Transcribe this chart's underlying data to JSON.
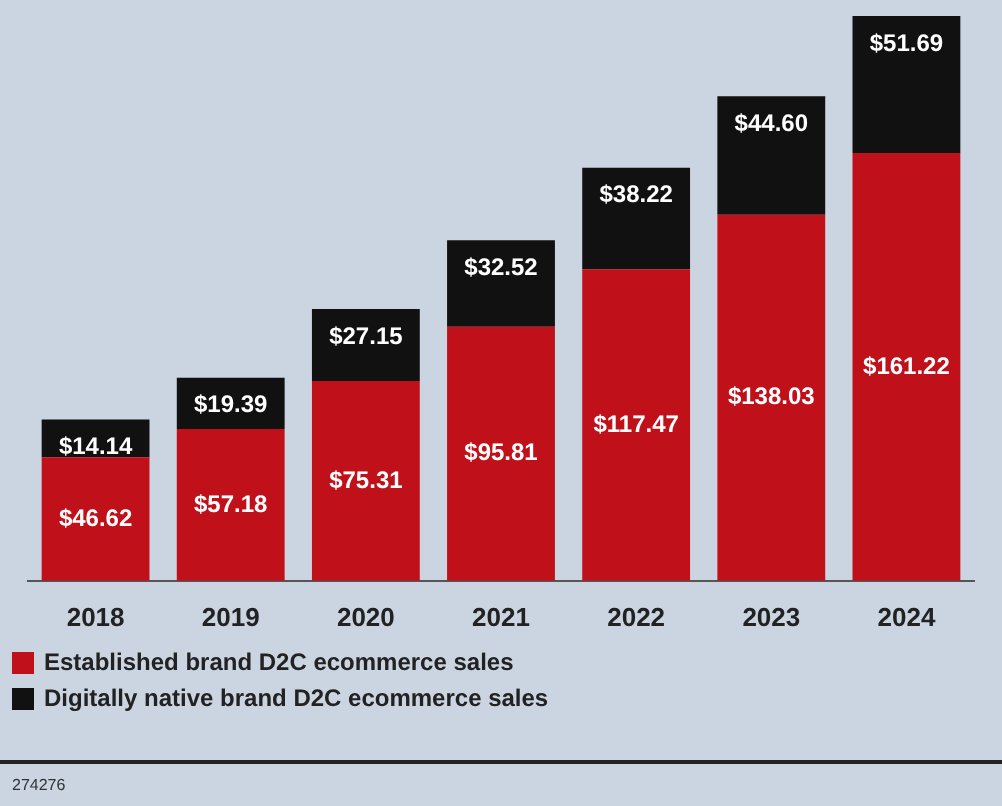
{
  "chart_data": {
    "type": "bar",
    "stacked": true,
    "categories": [
      "2018",
      "2019",
      "2020",
      "2021",
      "2022",
      "2023",
      "2024"
    ],
    "series": [
      {
        "name": "Established brand D2C ecommerce sales",
        "color": "#c0111b",
        "values": [
          46.62,
          57.18,
          75.31,
          95.81,
          117.47,
          138.03,
          161.22
        ],
        "value_labels": [
          "$46.62",
          "$57.18",
          "$75.31",
          "$95.81",
          "$117.47",
          "$138.03",
          "$161.22"
        ]
      },
      {
        "name": "Digitally native brand D2C ecommerce sales",
        "color": "#111111",
        "values": [
          14.14,
          19.39,
          27.15,
          32.52,
          38.22,
          44.6,
          51.69
        ],
        "value_labels": [
          "$14.14",
          "$19.39",
          "$27.15",
          "$32.52",
          "$38.22",
          "$44.60",
          "$51.69"
        ]
      }
    ],
    "legend": "bottom",
    "tick_labels": "x",
    "annotations": [
      "274276"
    ]
  }
}
